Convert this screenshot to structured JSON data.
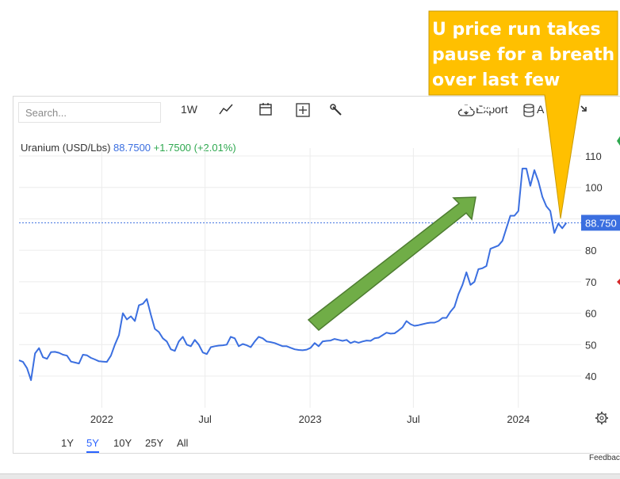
{
  "toolbar": {
    "search_placeholder": "Search...",
    "interval": "1W",
    "export_label": "Export",
    "data_label": "A"
  },
  "legend": {
    "name": "Uranium (USD/Lbs)",
    "last": "88.7500",
    "change": "+1.7500 (+2.01%)"
  },
  "price_tag": "88.750",
  "ranges": [
    "1Y",
    "5Y",
    "10Y",
    "25Y",
    "All"
  ],
  "active_range": "5Y",
  "feedback": "Feedbac",
  "annotation": {
    "text_line1": "U price run takes",
    "text_line2": "pause for a breath",
    "text_line3": "over last few weeks"
  },
  "colors": {
    "line": "#3b6fe0",
    "callout": "#ffc000",
    "arrow": "#70ad47",
    "change_up": "#2ea84f"
  },
  "chart_data": {
    "type": "line",
    "title": "Uranium (USD/Lbs)",
    "xlabel": "",
    "ylabel": "",
    "x_tick_labels": [
      "2022",
      "Jul",
      "2023",
      "Jul",
      "2024"
    ],
    "y_ticks": [
      40,
      50,
      60,
      70,
      80,
      90,
      100,
      110
    ],
    "y_tick_labels": [
      "40",
      "50",
      "60",
      "70",
      "80",
      "100",
      "110"
    ],
    "ylim": [
      32,
      117
    ],
    "xlim": [
      "2021-08-09",
      "2024-04-20"
    ],
    "grid": true,
    "last_value": 88.75,
    "series": [
      {
        "values": [
          [
            "2021-08-09",
            45.0
          ],
          [
            "2021-08-16",
            44.5
          ],
          [
            "2021-08-23",
            42.5
          ],
          [
            "2021-08-30",
            38.7
          ],
          [
            "2021-09-06",
            47.2
          ],
          [
            "2021-09-13",
            48.9
          ],
          [
            "2021-09-20",
            46.0
          ],
          [
            "2021-09-27",
            45.5
          ],
          [
            "2021-10-04",
            47.6
          ],
          [
            "2021-10-11",
            47.7
          ],
          [
            "2021-10-18",
            47.4
          ],
          [
            "2021-10-25",
            46.8
          ],
          [
            "2021-11-01",
            46.5
          ],
          [
            "2021-11-08",
            44.6
          ],
          [
            "2021-11-15",
            44.3
          ],
          [
            "2021-11-22",
            44.0
          ],
          [
            "2021-11-29",
            46.8
          ],
          [
            "2021-12-06",
            46.6
          ],
          [
            "2021-12-13",
            45.8
          ],
          [
            "2021-12-20",
            45.3
          ],
          [
            "2021-12-27",
            44.7
          ],
          [
            "2022-01-03",
            44.6
          ],
          [
            "2022-01-10",
            44.5
          ],
          [
            "2022-01-17",
            46.5
          ],
          [
            "2022-01-24",
            50.0
          ],
          [
            "2022-01-31",
            53.0
          ],
          [
            "2022-02-07",
            60.0
          ],
          [
            "2022-02-14",
            58.0
          ],
          [
            "2022-02-21",
            59.0
          ],
          [
            "2022-02-28",
            57.5
          ],
          [
            "2022-03-07",
            62.5
          ],
          [
            "2022-03-14",
            63.0
          ],
          [
            "2022-03-21",
            64.5
          ],
          [
            "2022-03-28",
            59.5
          ],
          [
            "2022-04-04",
            55.0
          ],
          [
            "2022-04-11",
            54.0
          ],
          [
            "2022-04-18",
            52.0
          ],
          [
            "2022-04-25",
            51.0
          ],
          [
            "2022-05-02",
            48.5
          ],
          [
            "2022-05-09",
            48.0
          ],
          [
            "2022-05-16",
            51.0
          ],
          [
            "2022-05-23",
            52.5
          ],
          [
            "2022-05-30",
            50.0
          ],
          [
            "2022-06-06",
            49.5
          ],
          [
            "2022-06-13",
            51.5
          ],
          [
            "2022-06-20",
            50.0
          ],
          [
            "2022-06-27",
            47.5
          ],
          [
            "2022-07-04",
            47.0
          ],
          [
            "2022-07-11",
            49.2
          ],
          [
            "2022-07-18",
            49.5
          ],
          [
            "2022-07-25",
            49.7
          ],
          [
            "2022-08-01",
            49.8
          ],
          [
            "2022-08-08",
            50.0
          ],
          [
            "2022-08-15",
            52.5
          ],
          [
            "2022-08-22",
            52.0
          ],
          [
            "2022-08-29",
            49.5
          ],
          [
            "2022-09-05",
            50.2
          ],
          [
            "2022-09-12",
            49.8
          ],
          [
            "2022-09-19",
            49.2
          ],
          [
            "2022-09-26",
            51.0
          ],
          [
            "2022-10-03",
            52.5
          ],
          [
            "2022-10-10",
            52.0
          ],
          [
            "2022-10-17",
            51.0
          ],
          [
            "2022-10-24",
            50.8
          ],
          [
            "2022-10-31",
            50.5
          ],
          [
            "2022-11-07",
            50.0
          ],
          [
            "2022-11-14",
            49.5
          ],
          [
            "2022-11-21",
            49.5
          ],
          [
            "2022-11-28",
            49.0
          ],
          [
            "2022-12-05",
            48.5
          ],
          [
            "2022-12-12",
            48.3
          ],
          [
            "2022-12-19",
            48.2
          ],
          [
            "2022-12-26",
            48.4
          ],
          [
            "2023-01-02",
            49.0
          ],
          [
            "2023-01-09",
            50.5
          ],
          [
            "2023-01-16",
            49.5
          ],
          [
            "2023-01-23",
            51.0
          ],
          [
            "2023-01-30",
            51.2
          ],
          [
            "2023-02-06",
            51.3
          ],
          [
            "2023-02-13",
            51.8
          ],
          [
            "2023-02-20",
            51.5
          ],
          [
            "2023-02-27",
            51.2
          ],
          [
            "2023-03-06",
            51.5
          ],
          [
            "2023-03-13",
            50.5
          ],
          [
            "2023-03-20",
            51.0
          ],
          [
            "2023-03-27",
            50.6
          ],
          [
            "2023-04-03",
            51.0
          ],
          [
            "2023-04-10",
            51.3
          ],
          [
            "2023-04-17",
            51.2
          ],
          [
            "2023-04-24",
            52.0
          ],
          [
            "2023-05-01",
            52.2
          ],
          [
            "2023-05-08",
            53.0
          ],
          [
            "2023-05-15",
            53.8
          ],
          [
            "2023-05-22",
            53.5
          ],
          [
            "2023-05-29",
            53.6
          ],
          [
            "2023-06-05",
            54.5
          ],
          [
            "2023-06-12",
            55.5
          ],
          [
            "2023-06-19",
            57.5
          ],
          [
            "2023-06-26",
            56.5
          ],
          [
            "2023-07-03",
            56.0
          ],
          [
            "2023-07-10",
            56.2
          ],
          [
            "2023-07-17",
            56.5
          ],
          [
            "2023-07-24",
            56.8
          ],
          [
            "2023-07-31",
            57.0
          ],
          [
            "2023-08-07",
            57.0
          ],
          [
            "2023-08-14",
            57.5
          ],
          [
            "2023-08-21",
            58.5
          ],
          [
            "2023-08-28",
            58.5
          ],
          [
            "2023-09-04",
            60.5
          ],
          [
            "2023-09-11",
            62.0
          ],
          [
            "2023-09-18",
            66.0
          ],
          [
            "2023-09-25",
            69.0
          ],
          [
            "2023-10-02",
            73.0
          ],
          [
            "2023-10-09",
            69.0
          ],
          [
            "2023-10-16",
            70.0
          ],
          [
            "2023-10-23",
            74.0
          ],
          [
            "2023-10-30",
            74.3
          ],
          [
            "2023-11-06",
            75.0
          ],
          [
            "2023-11-13",
            80.5
          ],
          [
            "2023-11-20",
            81.0
          ],
          [
            "2023-11-27",
            81.5
          ],
          [
            "2023-12-04",
            83.0
          ],
          [
            "2023-12-11",
            87.0
          ],
          [
            "2023-12-18",
            91.0
          ],
          [
            "2023-12-25",
            91.0
          ],
          [
            "2024-01-01",
            92.5
          ],
          [
            "2024-01-08",
            106.0
          ],
          [
            "2024-01-15",
            106.0
          ],
          [
            "2024-01-22",
            100.5
          ],
          [
            "2024-01-29",
            105.5
          ],
          [
            "2024-02-05",
            102.0
          ],
          [
            "2024-02-12",
            97.0
          ],
          [
            "2024-02-19",
            94.0
          ],
          [
            "2024-02-26",
            92.5
          ],
          [
            "2024-03-04",
            85.5
          ],
          [
            "2024-03-11",
            88.5
          ],
          [
            "2024-03-18",
            87.0
          ],
          [
            "2024-03-25",
            88.75
          ]
        ]
      }
    ]
  }
}
